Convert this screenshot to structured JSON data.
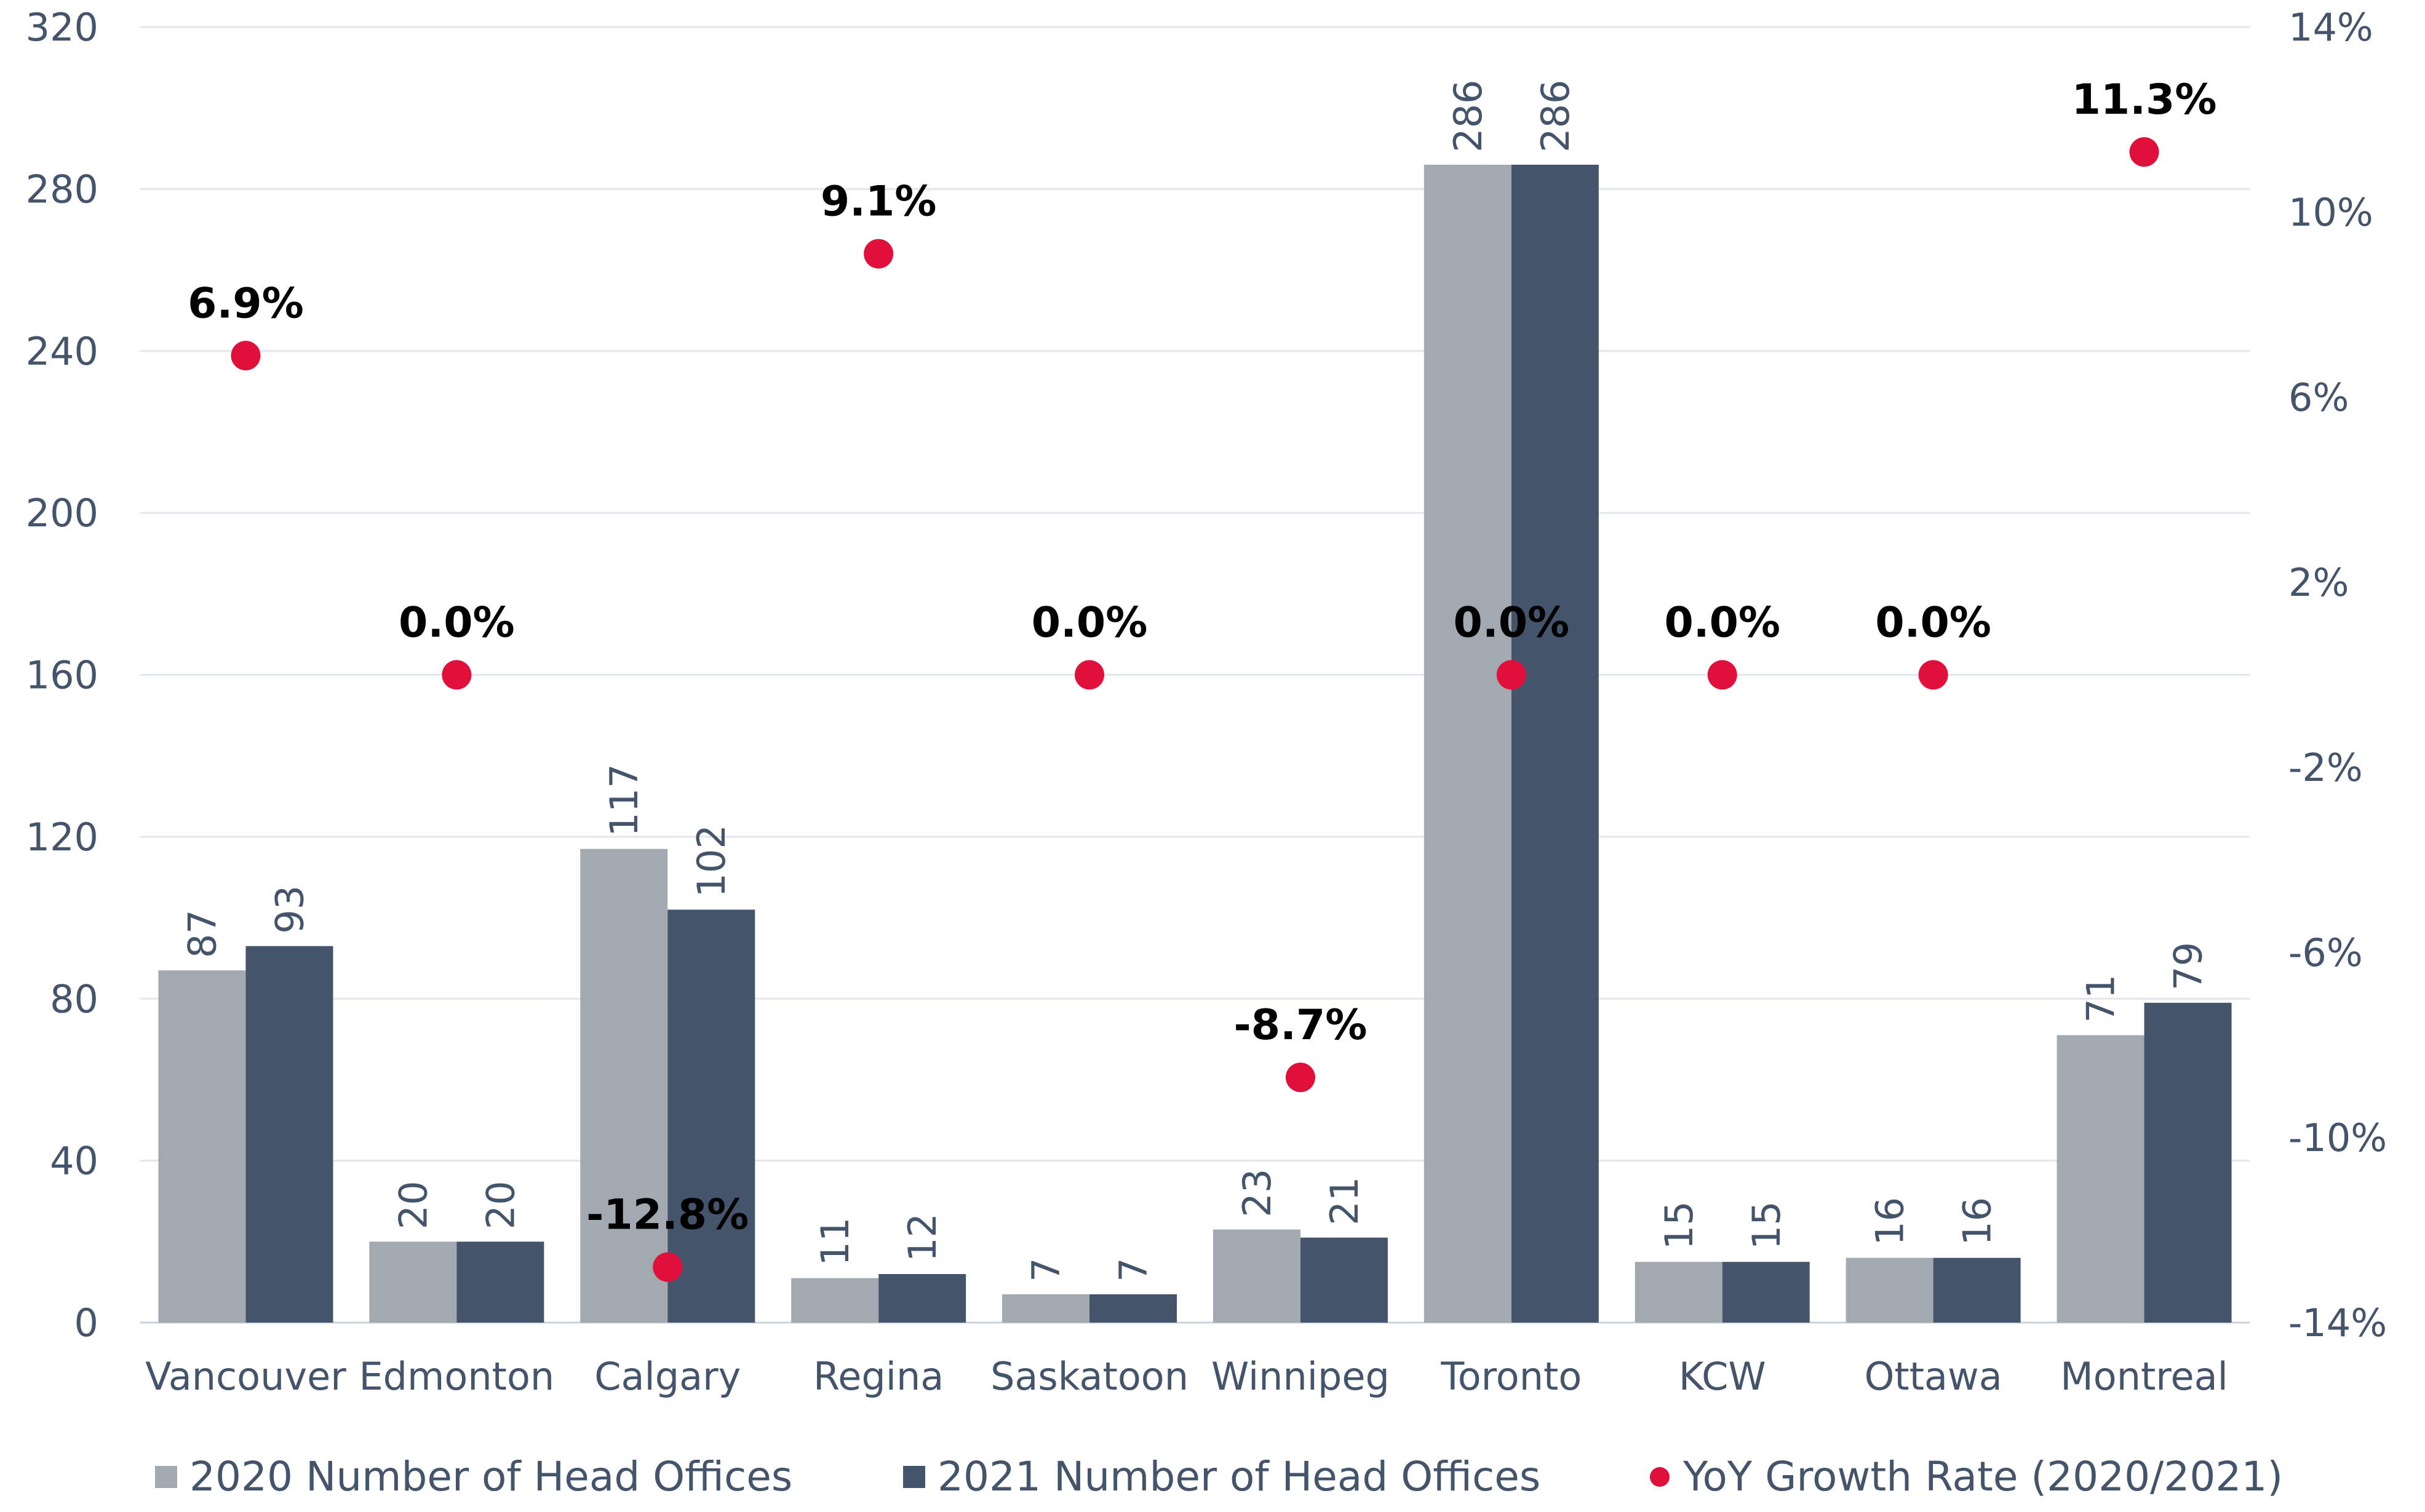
{
  "chart_data": {
    "type": "bar",
    "categories": [
      "Vancouver",
      "Edmonton",
      "Calgary",
      "Regina",
      "Saskatoon",
      "Winnipeg",
      "Toronto",
      "KCW",
      "Ottawa",
      "Montreal"
    ],
    "series": [
      {
        "name": "2020 Number of Head Offices",
        "type": "bar",
        "axis": "left",
        "color": "#a2a9b1",
        "values": [
          87,
          20,
          117,
          11,
          7,
          23,
          286,
          15,
          16,
          71
        ]
      },
      {
        "name": "2021 Number of Head Offices",
        "type": "bar",
        "axis": "left",
        "color": "#44546a",
        "values": [
          93,
          20,
          102,
          12,
          7,
          21,
          286,
          15,
          16,
          79
        ]
      },
      {
        "name": "YoY Growth Rate (2020/2021)",
        "type": "scatter",
        "axis": "right",
        "color": "#e0103a",
        "values": [
          6.9,
          0.0,
          -12.8,
          9.1,
          0.0,
          -8.7,
          0.0,
          0.0,
          0.0,
          11.3
        ],
        "labels": [
          "6.9%",
          "0.0%",
          "-12.8%",
          "9.1%",
          "0.0%",
          "-8.7%",
          "0.0%",
          "0.0%",
          "0.0%",
          "11.3%"
        ]
      }
    ],
    "y_left": {
      "min": 0,
      "max": 320,
      "ticks": [
        "0",
        "40",
        "80",
        "120",
        "160",
        "200",
        "240",
        "280",
        "320"
      ],
      "values": [
        0,
        40,
        80,
        120,
        160,
        200,
        240,
        280,
        320
      ]
    },
    "y_right": {
      "min": -14,
      "max": 14,
      "ticks": [
        "-14%",
        "-10%",
        "-6%",
        "-2%",
        "2%",
        "6%",
        "10%",
        "14%"
      ],
      "values": [
        -14,
        -10,
        -6,
        -2,
        2,
        6,
        10,
        14
      ]
    },
    "grid": true,
    "legend": "bottom",
    "xlabel": "",
    "ylabel": ""
  }
}
